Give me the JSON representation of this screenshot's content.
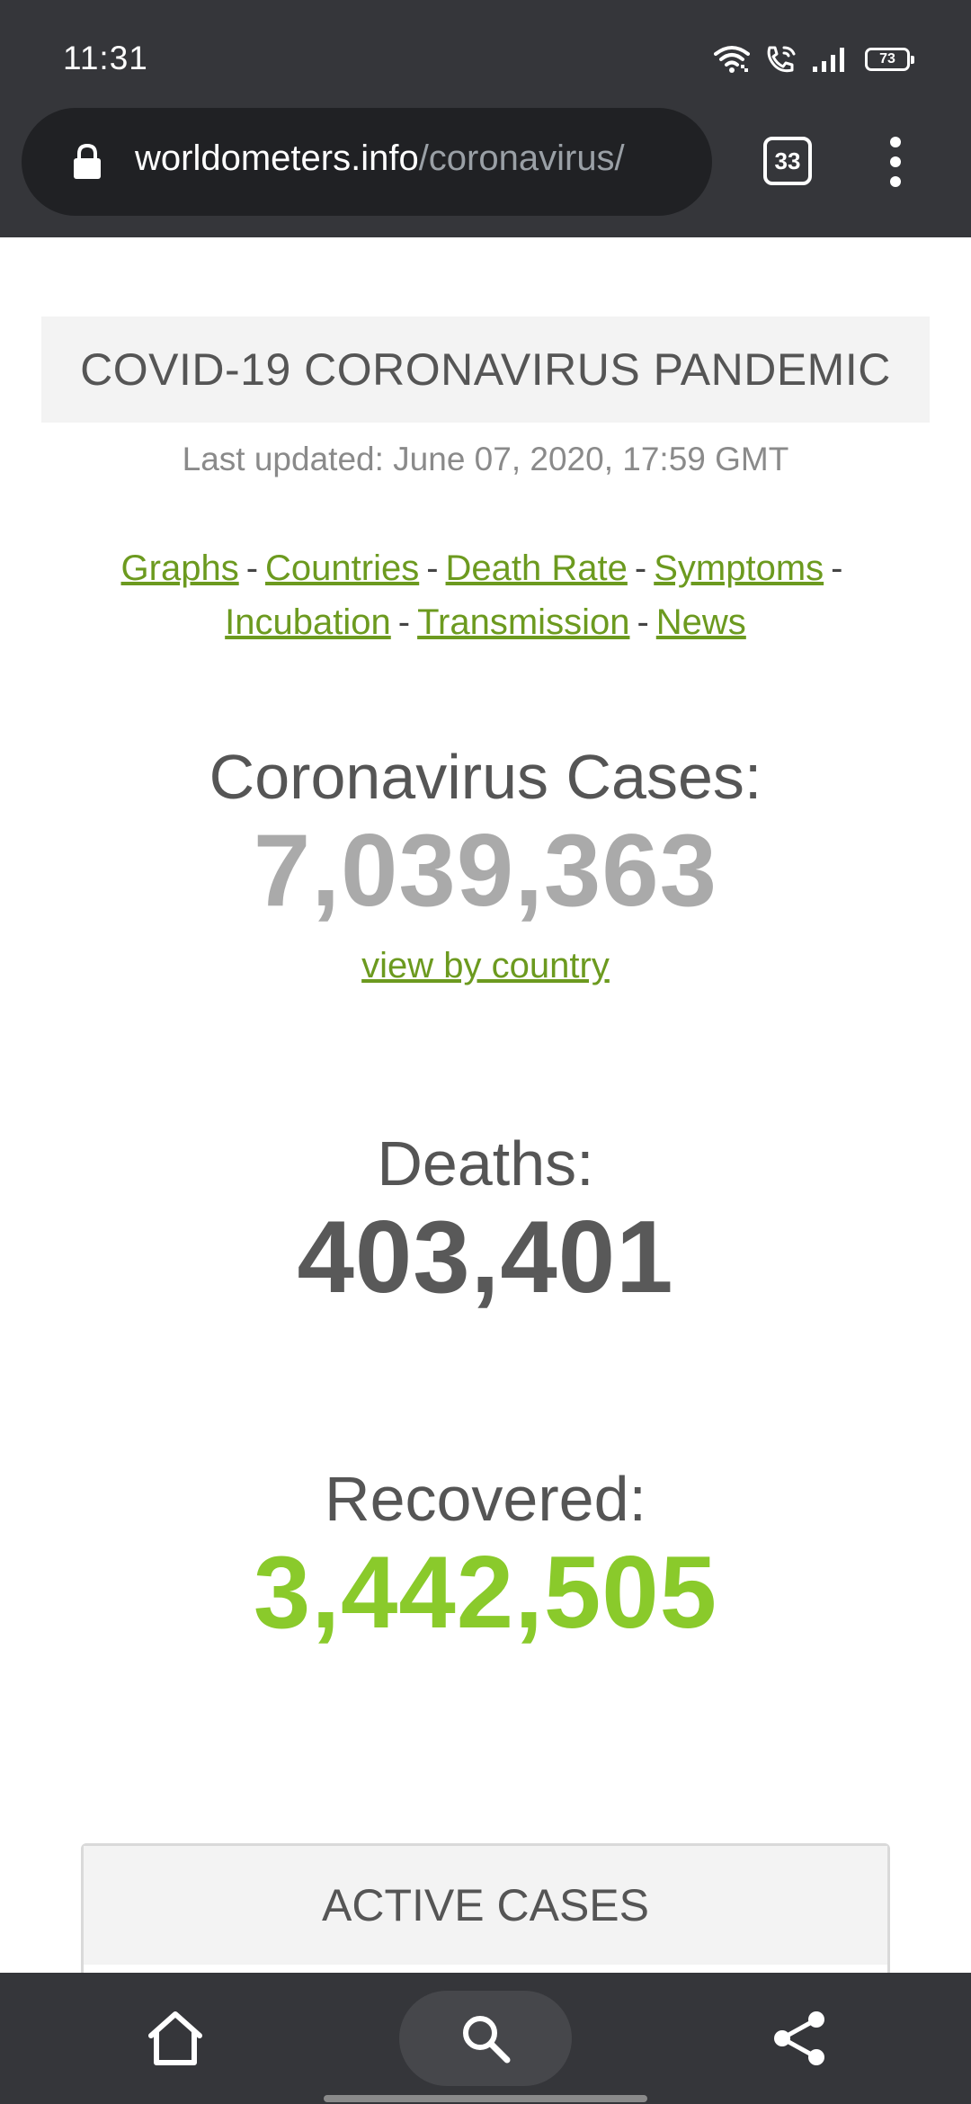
{
  "status_bar": {
    "time": "11:31",
    "battery": "73"
  },
  "browser": {
    "url_domain": "worldometers.info",
    "url_path": "/coronavirus/",
    "tab_count": "33"
  },
  "page": {
    "banner_title": "COVID-19 CORONAVIRUS PANDEMIC",
    "last_updated": "Last updated: June 07, 2020, 17:59 GMT",
    "nav_links": {
      "graphs": "Graphs",
      "countries": "Countries",
      "death_rate": "Death Rate",
      "symptoms": "Symptoms",
      "incubation": "Incubation",
      "transmission": "Transmission",
      "news": "News",
      "separator": "-"
    },
    "cases": {
      "label": "Coronavirus Cases:",
      "value": "7,039,363",
      "link": "view by country"
    },
    "deaths": {
      "label": "Deaths:",
      "value": "403,401"
    },
    "recovered": {
      "label": "Recovered:",
      "value": "3,442,505"
    },
    "active_cases": {
      "header": "ACTIVE CASES"
    }
  },
  "colors": {
    "chrome_bg": "#35363a",
    "link_green": "#6c9a1f",
    "recovered_green": "#8aca2b",
    "cases_gray": "#aaaaaa",
    "deaths_gray": "#595959"
  },
  "icons": {
    "status": [
      "wifi-icon",
      "wifi-calling-icon",
      "signal-icon",
      "battery-icon"
    ],
    "toolbar": [
      "home-icon",
      "search-icon",
      "share-icon"
    ],
    "url_bar": "lock-icon",
    "menu": "more-vert-icon"
  }
}
